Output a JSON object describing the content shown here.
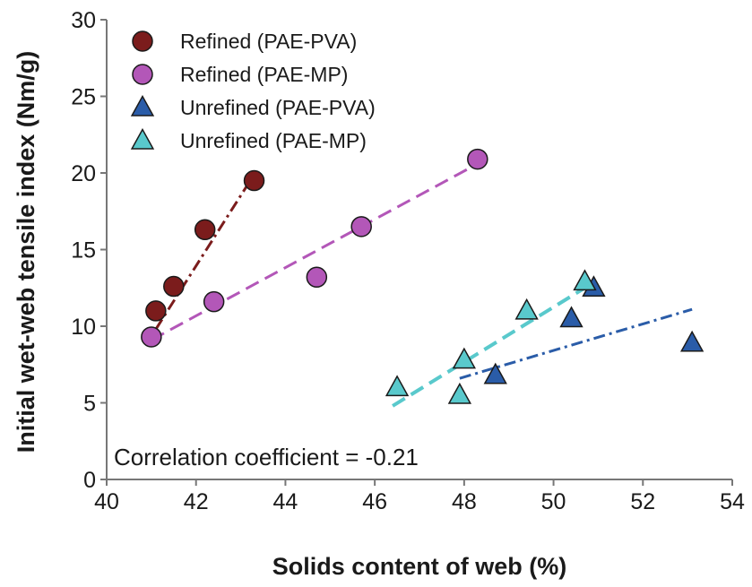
{
  "chart_data": {
    "type": "scatter",
    "title": "",
    "xlabel": "Solids content of web (%)",
    "ylabel": "Initial wet-web tensile index (Nm/g)",
    "xlim": [
      40,
      54
    ],
    "ylim": [
      0,
      30
    ],
    "xticks": [
      "40",
      "42",
      "44",
      "46",
      "48",
      "50",
      "52",
      "54"
    ],
    "yticks": [
      "0",
      "5",
      "10",
      "15",
      "20",
      "25",
      "30"
    ],
    "grid": false,
    "legend_position": "top-left",
    "annotation": "Correlation coefficient = -0.21",
    "series": [
      {
        "name": "Refined (PAE-PVA)",
        "marker": "circle",
        "color": "#7b1c1c",
        "points": [
          [
            41.1,
            11.0
          ],
          [
            41.5,
            12.6
          ],
          [
            42.2,
            16.3
          ],
          [
            43.3,
            19.5
          ]
        ],
        "trendline": {
          "x": [
            41.1,
            43.3
          ],
          "y": [
            9.8,
            19.9
          ],
          "style": "dashdot"
        }
      },
      {
        "name": "Refined (PAE-MP)",
        "marker": "circle",
        "color": "#b357b8",
        "points": [
          [
            41.0,
            9.3
          ],
          [
            42.4,
            11.6
          ],
          [
            44.7,
            13.2
          ],
          [
            45.7,
            16.5
          ],
          [
            48.3,
            20.9
          ]
        ],
        "trendline": {
          "x": [
            41.0,
            48.3
          ],
          "y": [
            9.1,
            20.6
          ],
          "style": "dashed"
        }
      },
      {
        "name": "Unrefined (PAE-PVA)",
        "marker": "triangle",
        "color": "#2a5ca8",
        "points": [
          [
            48.7,
            6.8
          ],
          [
            50.4,
            10.5
          ],
          [
            50.9,
            12.5
          ],
          [
            53.1,
            8.9
          ]
        ],
        "trendline": {
          "x": [
            47.9,
            53.1
          ],
          "y": [
            6.6,
            11.1
          ],
          "style": "dashdot"
        }
      },
      {
        "name": "Unrefined (PAE-MP)",
        "marker": "triangle",
        "color": "#59c9cc",
        "points": [
          [
            46.5,
            6.0
          ],
          [
            47.9,
            5.5
          ],
          [
            48.0,
            7.8
          ],
          [
            49.4,
            11.0
          ],
          [
            50.7,
            12.9
          ]
        ],
        "trendline": {
          "x": [
            46.4,
            50.7
          ],
          "y": [
            4.8,
            12.5
          ],
          "style": "dashed"
        }
      }
    ]
  }
}
